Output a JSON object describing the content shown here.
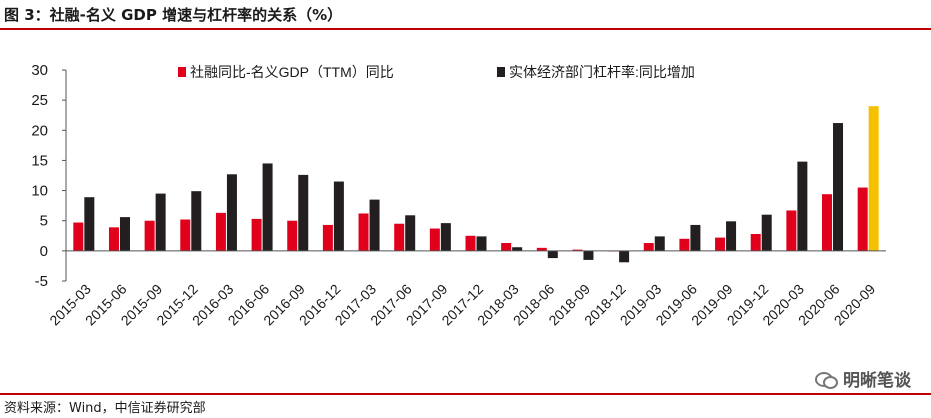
{
  "header": {
    "title": "图 3：社融-名义 GDP 增速与杠杆率的关系（%）"
  },
  "footer": {
    "source": "资料来源：Wind，中信证券研究部",
    "watermark": "明晰笔谈"
  },
  "colors": {
    "red": "#e0001b",
    "dark": "#231f20",
    "highlight": "#f5c000",
    "rule": "#c00000"
  },
  "chart_data": {
    "type": "bar",
    "categories": [
      "2015-03",
      "2015-06",
      "2015-09",
      "2015-12",
      "2016-03",
      "2016-06",
      "2016-09",
      "2016-12",
      "2017-03",
      "2017-06",
      "2017-09",
      "2017-12",
      "2018-03",
      "2018-06",
      "2018-09",
      "2018-12",
      "2019-03",
      "2019-06",
      "2019-09",
      "2019-12",
      "2020-03",
      "2020-06",
      "2020-09"
    ],
    "series": [
      {
        "name": "社融同比-名义GDP（TTM）同比",
        "color": "#e0001b",
        "values": [
          4.7,
          3.9,
          5.0,
          5.2,
          6.3,
          5.3,
          5.0,
          4.3,
          6.2,
          4.5,
          3.7,
          2.5,
          1.3,
          0.5,
          0.2,
          -0.1,
          1.3,
          2.0,
          2.2,
          2.8,
          6.7,
          9.4,
          10.5
        ]
      },
      {
        "name": "实体经济部门杠杆率:同比增加",
        "color": "#231f20",
        "values": [
          8.9,
          5.6,
          9.5,
          9.9,
          12.7,
          14.5,
          12.6,
          11.5,
          8.5,
          5.9,
          4.6,
          2.4,
          0.6,
          -1.2,
          -1.5,
          -1.9,
          2.4,
          4.3,
          4.9,
          6.0,
          14.8,
          21.2,
          null
        ]
      }
    ],
    "highlight": {
      "category": "2020-09",
      "value": 24.0,
      "color": "#f5c000"
    },
    "ylim": [
      -5,
      30
    ],
    "yticks": [
      30,
      25,
      20,
      15,
      10,
      5,
      0,
      -5
    ],
    "legend": "top"
  }
}
